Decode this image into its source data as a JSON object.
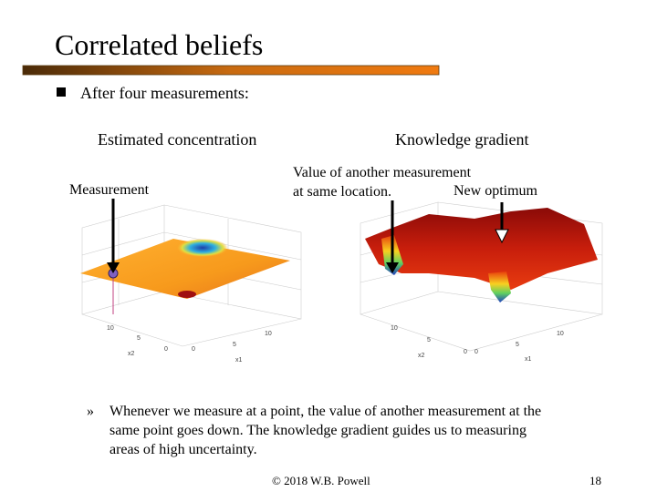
{
  "header": {
    "title": "Correlated beliefs"
  },
  "bullet": "After four measurements:",
  "left_plot": {
    "caption": "Estimated concentration",
    "annotation": "Measurement",
    "axis_labels": [
      "10",
      "5",
      "0",
      "0",
      "5",
      "10",
      "x2",
      "x1"
    ]
  },
  "right_plot": {
    "caption": "Knowledge gradient",
    "annotation_lines": [
      "Value of another measurement",
      "at same location."
    ],
    "annotation_right": "New optimum",
    "axis_labels": [
      "10",
      "5",
      "0",
      "0",
      "5",
      "10",
      "x2",
      "x1"
    ]
  },
  "sub_bullet": {
    "marker": "»",
    "lines": [
      "Whenever we measure at a point, the value of another measurement at the",
      "same point goes down.  The knowledge gradient guides us to measuring",
      "areas of high uncertainty."
    ]
  },
  "footer": {
    "credit": "© 2018 W.B. Powell",
    "page": "18"
  }
}
